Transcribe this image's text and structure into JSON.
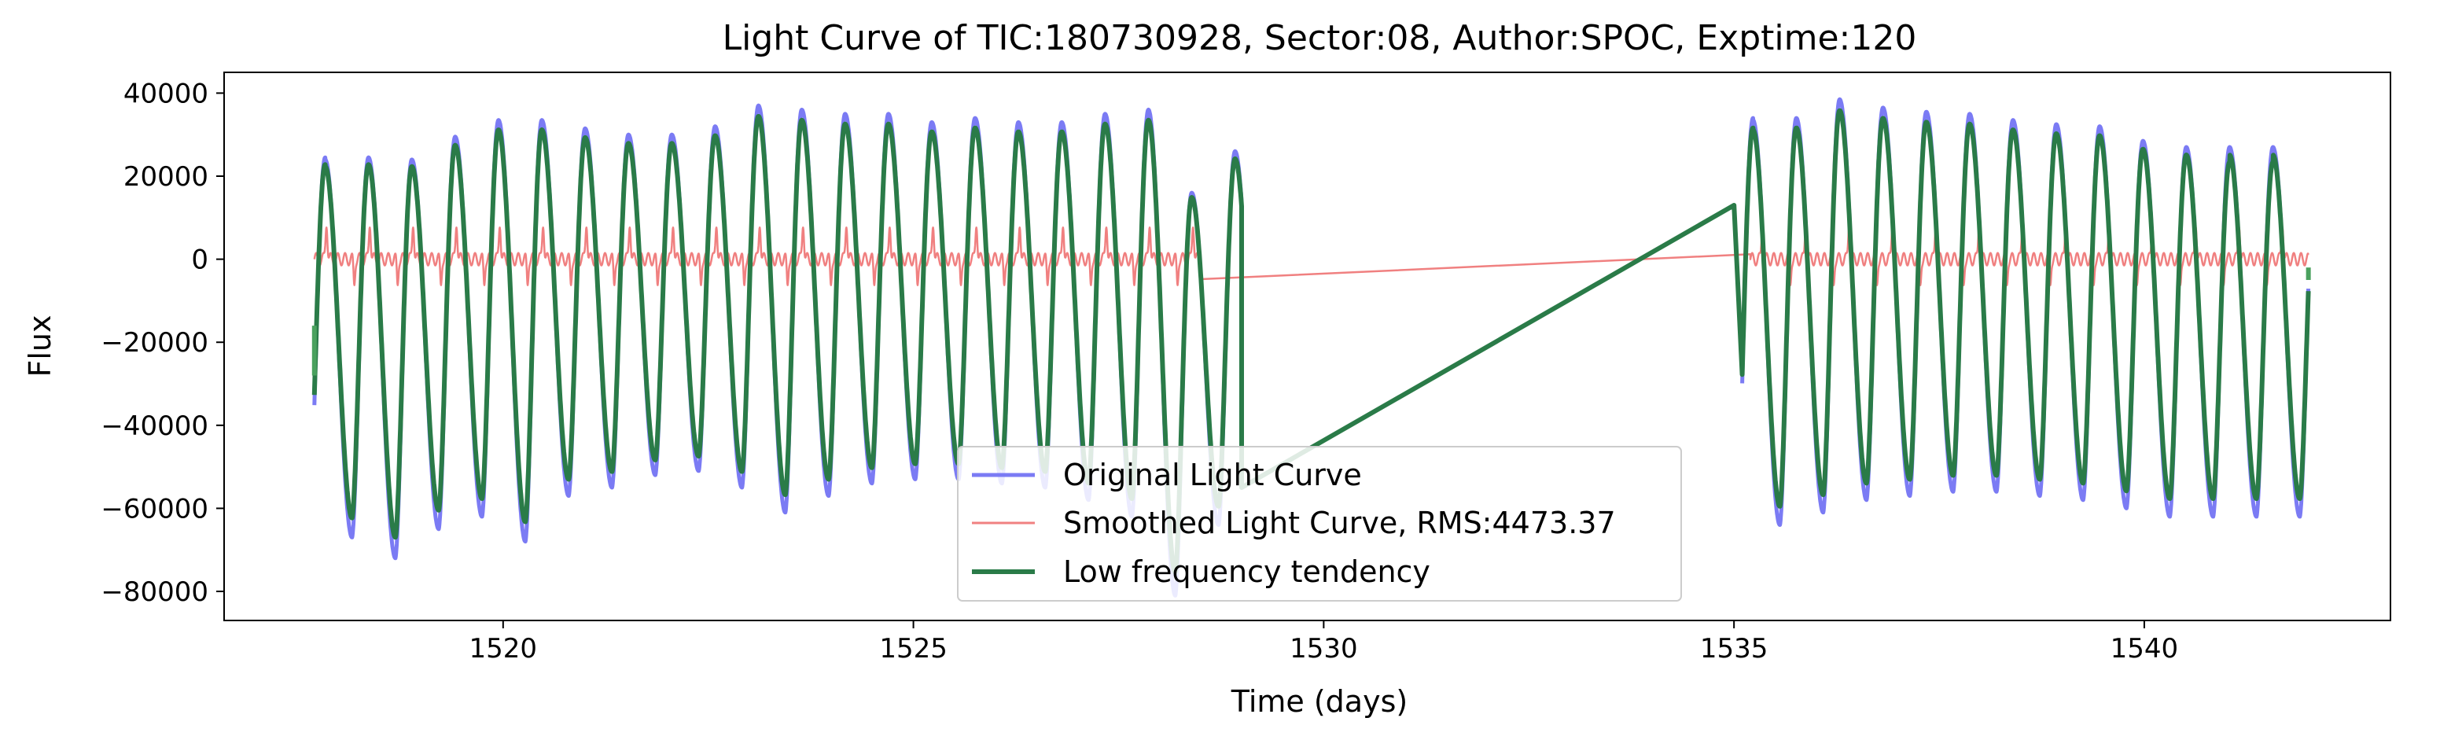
{
  "chart_data": {
    "type": "line",
    "title": "Light Curve of TIC:180730928, Sector:08, Author:SPOC, Exptime:120",
    "xlabel": "Time (days)",
    "ylabel": "Flux",
    "xlim": [
      1516.6,
      1543.0
    ],
    "ylim": [
      -87000,
      45000
    ],
    "grid": false,
    "legend_position": "lower-center",
    "xticks": [
      1520,
      1525,
      1530,
      1535,
      1540
    ],
    "xtick_labels": [
      "1520",
      "1525",
      "1530",
      "1535",
      "1540"
    ],
    "yticks": [
      40000,
      20000,
      0,
      -20000,
      -40000,
      -60000,
      -80000
    ],
    "ytick_labels": [
      "40000",
      "20000",
      "0",
      "−20000",
      "−40000",
      "−60000",
      "−80000"
    ],
    "segments": [
      {
        "t_start": 1517.7,
        "t_end": 1529.0
      },
      {
        "t_start": 1535.1,
        "t_end": 1542.0
      }
    ],
    "series": [
      {
        "name": "Original Light Curve",
        "color": "#7b7bf4",
        "line_width": 5,
        "role": "original",
        "period_days": 0.528,
        "maxima": [
          24000,
          24500,
          24000,
          29500,
          33500,
          33500,
          31500,
          30000,
          30000,
          32000,
          37000,
          36000,
          35000,
          35000,
          33000,
          34000,
          33000,
          33000,
          35000,
          36000,
          16000,
          26000,
          33500,
          34000,
          38500,
          36500,
          35500,
          35000,
          33500,
          32500,
          32000,
          28500,
          27000
        ],
        "minima": [
          -67000,
          -72000,
          -65000,
          -62000,
          -68000,
          -57000,
          -55000,
          -52000,
          -51000,
          -55000,
          -61000,
          -57000,
          -54000,
          -53000,
          -53000,
          -54000,
          -55000,
          -58000,
          -62000,
          -81000,
          -64000,
          -62000,
          -64000,
          -61000,
          -58000,
          -57000,
          -56000,
          -56000,
          -57000,
          -58000,
          -60000,
          -62000
        ]
      },
      {
        "name": "Smoothed Light Curve, RMS:4473.37",
        "color": "#f08080",
        "line_width": 2.5,
        "role": "residual",
        "mean": 0,
        "amplitude_high": 9000,
        "amplitude_low": -6000,
        "gap_line": [
          [
            1528.5,
            -4800
          ],
          [
            1535.2,
            1200
          ]
        ]
      },
      {
        "name": "Low frequency tendency",
        "color": "#2a7b48",
        "line_width": 6,
        "role": "trend",
        "gap_line": [
          [
            1529.0,
            -55000
          ],
          [
            1535.0,
            13000
          ]
        ],
        "start_marker": [
          1517.7,
          -18000
        ],
        "end_marker": [
          1542.0,
          -5000
        ]
      }
    ]
  }
}
